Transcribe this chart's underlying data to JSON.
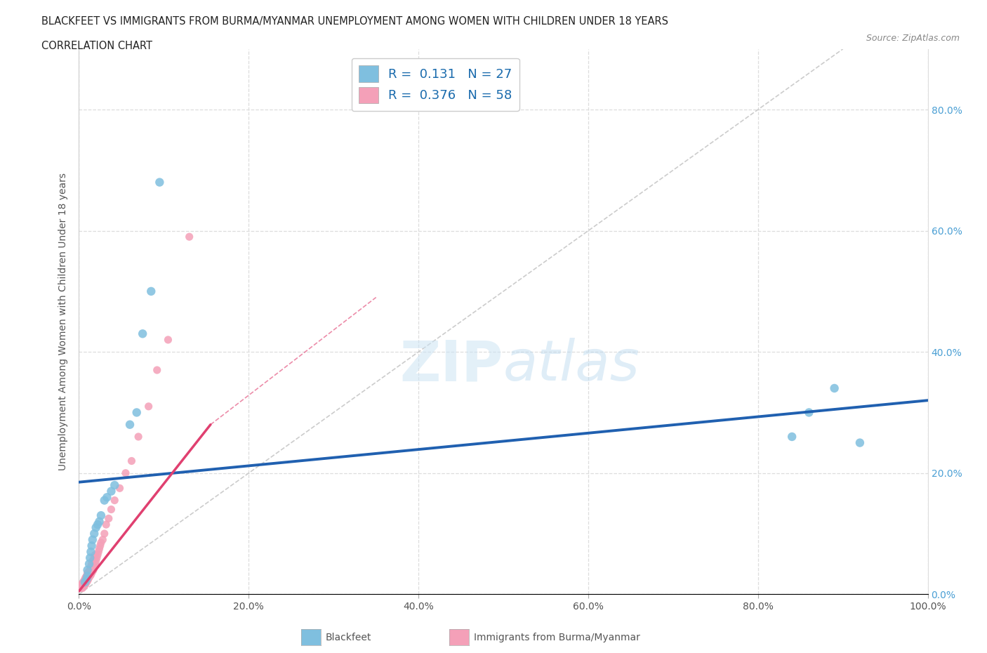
{
  "title_line1": "BLACKFEET VS IMMIGRANTS FROM BURMA/MYANMAR UNEMPLOYMENT AMONG WOMEN WITH CHILDREN UNDER 18 YEARS",
  "title_line2": "CORRELATION CHART",
  "source": "Source: ZipAtlas.com",
  "ylabel": "Unemployment Among Women with Children Under 18 years",
  "xlim": [
    0,
    1.0
  ],
  "ylim": [
    0,
    0.9
  ],
  "background_color": "#ffffff",
  "grid_color": "#dddddd",
  "blue_color": "#7fbfdf",
  "pink_color": "#f4a0b8",
  "trend_blue": "#2060b0",
  "trend_pink": "#e04070",
  "diag_color": "#cccccc",
  "legend_R_blue": "0.131",
  "legend_N_blue": "27",
  "legend_R_pink": "0.376",
  "legend_N_pink": "58",
  "blackfeet_x": [
    0.007,
    0.009,
    0.01,
    0.01,
    0.012,
    0.013,
    0.014,
    0.015,
    0.016,
    0.018,
    0.02,
    0.022,
    0.024,
    0.026,
    0.03,
    0.033,
    0.038,
    0.042,
    0.06,
    0.068,
    0.075,
    0.085,
    0.095,
    0.84,
    0.86,
    0.89,
    0.92
  ],
  "blackfeet_y": [
    0.02,
    0.025,
    0.03,
    0.04,
    0.05,
    0.06,
    0.07,
    0.08,
    0.09,
    0.1,
    0.11,
    0.115,
    0.12,
    0.13,
    0.155,
    0.16,
    0.17,
    0.18,
    0.28,
    0.3,
    0.43,
    0.5,
    0.68,
    0.26,
    0.3,
    0.34,
    0.25
  ],
  "burma_x": [
    0.002,
    0.003,
    0.003,
    0.004,
    0.004,
    0.005,
    0.005,
    0.005,
    0.006,
    0.006,
    0.007,
    0.007,
    0.007,
    0.008,
    0.008,
    0.009,
    0.009,
    0.01,
    0.01,
    0.01,
    0.011,
    0.011,
    0.012,
    0.012,
    0.013,
    0.013,
    0.014,
    0.014,
    0.015,
    0.015,
    0.016,
    0.016,
    0.017,
    0.018,
    0.018,
    0.019,
    0.019,
    0.02,
    0.021,
    0.022,
    0.023,
    0.024,
    0.025,
    0.026,
    0.028,
    0.03,
    0.032,
    0.035,
    0.038,
    0.042,
    0.048,
    0.055,
    0.062,
    0.07,
    0.082,
    0.092,
    0.105,
    0.13
  ],
  "burma_y": [
    0.01,
    0.012,
    0.015,
    0.01,
    0.018,
    0.012,
    0.015,
    0.02,
    0.015,
    0.022,
    0.015,
    0.02,
    0.025,
    0.018,
    0.028,
    0.02,
    0.03,
    0.022,
    0.03,
    0.035,
    0.025,
    0.035,
    0.028,
    0.038,
    0.03,
    0.04,
    0.032,
    0.045,
    0.035,
    0.05,
    0.038,
    0.055,
    0.04,
    0.045,
    0.06,
    0.05,
    0.065,
    0.055,
    0.06,
    0.065,
    0.07,
    0.075,
    0.08,
    0.085,
    0.09,
    0.1,
    0.115,
    0.125,
    0.14,
    0.155,
    0.175,
    0.2,
    0.22,
    0.26,
    0.31,
    0.37,
    0.42,
    0.59
  ],
  "bf_trend_x": [
    0.0,
    1.0
  ],
  "bf_trend_y": [
    0.185,
    0.32
  ],
  "bm_trend_x": [
    0.0,
    0.155
  ],
  "bm_trend_y": [
    0.005,
    0.28
  ]
}
